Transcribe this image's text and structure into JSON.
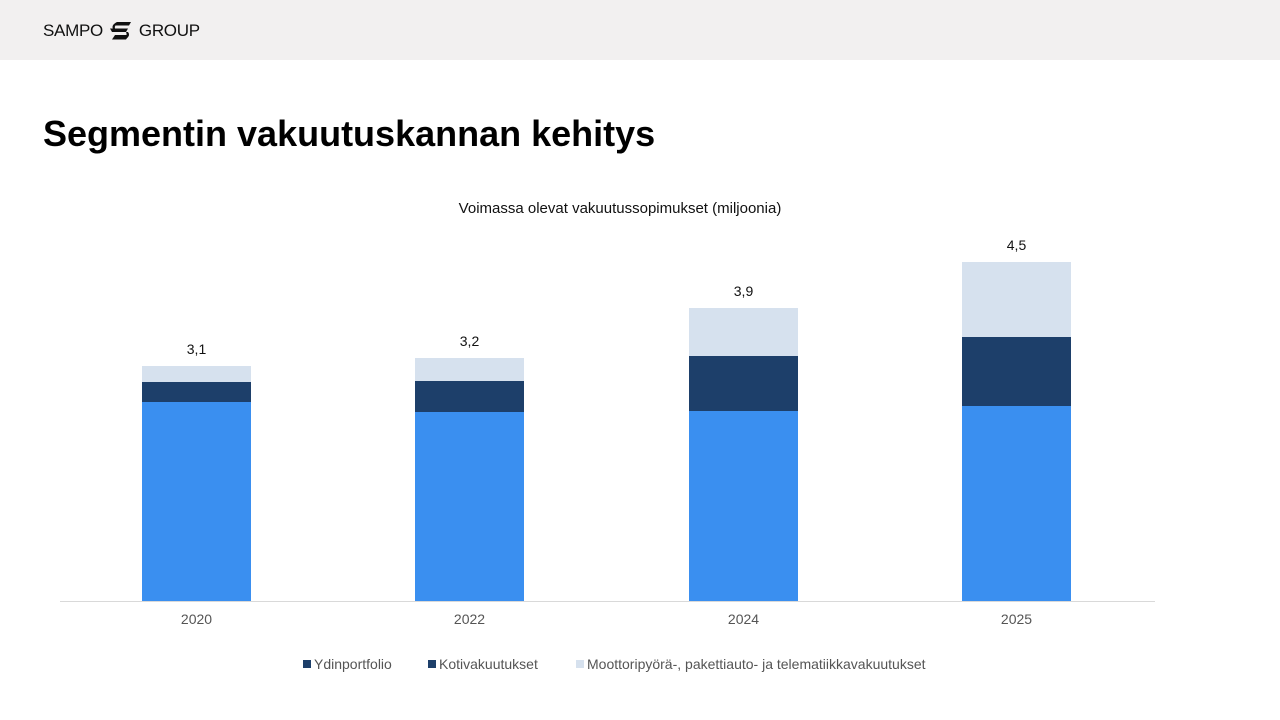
{
  "header": {
    "logo_left": "SAMPO",
    "logo_right": "GROUP",
    "logo_icon": "sampo-s-mark-icon"
  },
  "page": {
    "title": "Segmentin vakuutuskannan kehitys"
  },
  "colors": {
    "ydinportfolio": "#3a8ff0",
    "kotivakuutukset": "#1d3f6a",
    "moottori": "#d6e1ee",
    "axis": "#d9d9d9",
    "header_bg": "#f2f0f0"
  },
  "chart_data": {
    "type": "bar",
    "stacked": true,
    "title": "Voimassa olevat vakuutussopimukset (miljoonia)",
    "xlabel": "",
    "ylabel": "",
    "categories": [
      "2020",
      "2022",
      "2024",
      "2025"
    ],
    "series": [
      {
        "name": "Ydinportfolio",
        "color": "#3a8ff0",
        "values": [
          2.63,
          2.49,
          2.51,
          2.57
        ]
      },
      {
        "name": "Kotivakuutukset",
        "color": "#1d3f6a",
        "values": [
          0.26,
          0.41,
          0.73,
          0.91
        ]
      },
      {
        "name": "Moottoripyörä-, pakettiauto- ja telematiikkavakuutukset",
        "color": "#d6e1ee",
        "values": [
          0.21,
          0.3,
          0.63,
          0.99
        ]
      }
    ],
    "totals": [
      3.1,
      3.2,
      3.9,
      4.5
    ],
    "total_labels": [
      "3,1",
      "3,2",
      "3,9",
      "4,5"
    ],
    "ylim": [
      0,
      4.5
    ],
    "grid": false,
    "legend_position": "bottom",
    "legend": [
      {
        "label": "Ydinportfolio",
        "swatch": "#1d3f6a"
      },
      {
        "label": "Kotivakuutukset",
        "swatch": "#1d3f6a"
      },
      {
        "label": "Moottoripyörä-, pakettiauto- ja telematiikkavakuutukset",
        "swatch": "#d6e1ee"
      }
    ]
  }
}
